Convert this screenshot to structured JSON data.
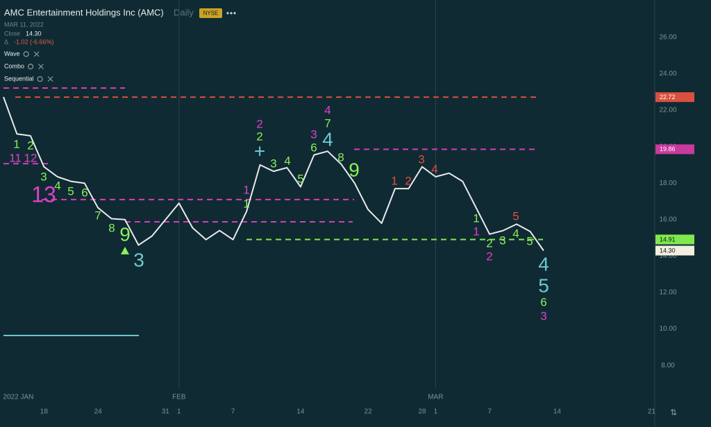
{
  "chart_data": {
    "type": "line",
    "title": "AMC Entertainment Holdings Inc (AMC)",
    "interval": "Daily",
    "exchange": "NYSE",
    "date": "MAR 11, 2022",
    "close_label": "Close",
    "close": {
      "value": 14.3,
      "label": "14.30"
    },
    "change_label": "Δ",
    "change": "-1.02 (-6.66%)",
    "indicators": [
      "Wave",
      "Combo",
      "Sequential"
    ],
    "x": [
      0,
      1,
      2,
      3,
      4,
      5,
      6,
      7,
      8,
      9,
      10,
      11,
      12,
      13,
      14,
      15,
      16,
      17,
      18,
      19,
      20,
      21,
      22,
      23,
      24,
      25,
      26,
      27,
      28,
      29,
      30,
      31,
      32,
      33,
      34,
      35,
      36,
      37,
      38,
      39,
      40
    ],
    "series": [
      {
        "name": "AMC",
        "color": "#e8ecec",
        "values": [
          22.73,
          20.7,
          20.6,
          18.9,
          18.35,
          18.1,
          18.0,
          16.65,
          16.05,
          16.0,
          14.6,
          15.1,
          16.0,
          16.9,
          15.55,
          14.9,
          15.4,
          14.9,
          16.45,
          19.0,
          18.65,
          18.85,
          17.8,
          19.55,
          19.75,
          19.05,
          18.0,
          16.55,
          15.8,
          17.7,
          17.7,
          18.9,
          18.35,
          18.55,
          18.1,
          16.65,
          15.2,
          15.4,
          15.75,
          15.35,
          14.3
        ]
      }
    ],
    "xlim": [
      -0.257,
      48.23
    ],
    "ylim": [
      6.75,
      28.05
    ],
    "yticks": [
      {
        "value": 26,
        "label": "26.00"
      },
      {
        "value": 24,
        "label": "24.00"
      },
      {
        "value": 22,
        "label": "22.00"
      },
      {
        "value": 20,
        "label": "20.00"
      },
      {
        "value": 18,
        "label": "18.00"
      },
      {
        "value": 16,
        "label": "16.00"
      },
      {
        "value": 14,
        "label": "14.00"
      },
      {
        "value": 12,
        "label": "12.00"
      },
      {
        "value": 10,
        "label": "10.00"
      },
      {
        "value": 8,
        "label": "8.00"
      }
    ],
    "xticks": [
      {
        "value": 3,
        "label": "18"
      },
      {
        "value": 7,
        "label": "24"
      },
      {
        "value": 12,
        "label": "31"
      },
      {
        "value": 13,
        "label": "1"
      },
      {
        "value": 17,
        "label": "7"
      },
      {
        "value": 22,
        "label": "14"
      },
      {
        "value": 27,
        "label": "22"
      },
      {
        "value": 31,
        "label": "28"
      },
      {
        "value": 32,
        "label": "1"
      },
      {
        "value": 36,
        "label": "7"
      },
      {
        "value": 41,
        "label": "14"
      },
      {
        "value": 48,
        "label": "21"
      }
    ],
    "month_labels": [
      {
        "value": 1.1,
        "label": "2022 JAN"
      },
      {
        "value": 13,
        "label": "FEB"
      },
      {
        "value": 32,
        "label": "MAR"
      }
    ],
    "levels": [
      {
        "value": 23.22,
        "color": "#d63fb8",
        "dashed": true
      },
      {
        "value": 22.72,
        "color": "#d9503f",
        "dashed": true
      },
      {
        "value": 19.07,
        "color": "#d63fb8",
        "dashed": true
      },
      {
        "value": 17.1,
        "color": "#d63fb8",
        "dashed": true
      },
      {
        "value": 15.88,
        "color": "#d63fb8",
        "dashed": true
      },
      {
        "value": 19.86,
        "color": "#d63fb8",
        "dashed": true
      },
      {
        "value": 14.91,
        "color": "#7fe84e",
        "dashed": true
      },
      {
        "value": 9.64,
        "color": "#6cc8cc",
        "dashed": false
      }
    ],
    "price_tags": [
      {
        "value": 22.72,
        "label": "22.72",
        "color": "#d9503f"
      },
      {
        "value": 19.86,
        "label": "19.86",
        "color": "#c83a9c"
      },
      {
        "value": 14.91,
        "label": "14.91",
        "color": "#7fe84e"
      },
      {
        "value": 14.3,
        "label": "14.30",
        "color": "#f2efe0"
      }
    ],
    "annotations": [
      {
        "text": "1",
        "color": "#8cf05a"
      },
      {
        "text": "2",
        "color": "#8cf05a"
      },
      {
        "text": "11",
        "color": "#e040c8"
      },
      {
        "text": "12",
        "color": "#e040c8"
      },
      {
        "text": "3",
        "color": "#8cf05a"
      },
      {
        "text": "4",
        "color": "#8cf05a"
      },
      {
        "text": "5",
        "color": "#8cf05a"
      },
      {
        "text": "6",
        "color": "#8cf05a"
      },
      {
        "text": "13",
        "color": "#e040c8"
      },
      {
        "text": "7",
        "color": "#8cf05a"
      },
      {
        "text": "8",
        "color": "#8cf05a"
      },
      {
        "text": "9",
        "color": "#8cf05a"
      },
      {
        "text": "3",
        "color": "#6cc8d0"
      },
      {
        "text": "1",
        "color": "#e040c8"
      },
      {
        "text": "1",
        "color": "#8cf05a"
      },
      {
        "text": "2",
        "color": "#e040c8"
      },
      {
        "text": "2",
        "color": "#8cf05a"
      },
      {
        "text": "+",
        "color": "#6cc8d0"
      },
      {
        "text": "3",
        "color": "#8cf05a"
      },
      {
        "text": "4",
        "color": "#8cf05a"
      },
      {
        "text": "5",
        "color": "#8cf05a"
      },
      {
        "text": "3",
        "color": "#e040c8"
      },
      {
        "text": "6",
        "color": "#8cf05a"
      },
      {
        "text": "4",
        "color": "#e040c8"
      },
      {
        "text": "7",
        "color": "#8cf05a"
      },
      {
        "text": "4",
        "color": "#6cc8d0"
      },
      {
        "text": "8",
        "color": "#8cf05a"
      },
      {
        "text": "9",
        "color": "#8cf05a"
      },
      {
        "text": "1",
        "color": "#e0503c"
      },
      {
        "text": "2",
        "color": "#e0503c"
      },
      {
        "text": "3",
        "color": "#e0503c"
      },
      {
        "text": "4",
        "color": "#e0503c"
      },
      {
        "text": "1",
        "color": "#8cf05a"
      },
      {
        "text": "1",
        "color": "#e040c8"
      },
      {
        "text": "2",
        "color": "#8cf05a"
      },
      {
        "text": "2",
        "color": "#e040c8"
      },
      {
        "text": "3",
        "color": "#8cf05a"
      },
      {
        "text": "4",
        "color": "#8cf05a"
      },
      {
        "text": "5",
        "color": "#e0503c"
      },
      {
        "text": "5",
        "color": "#8cf05a"
      },
      {
        "text": "4",
        "color": "#6cc8d0"
      },
      {
        "text": "5",
        "color": "#6cc8d0"
      },
      {
        "text": "6",
        "color": "#8cf05a"
      },
      {
        "text": "3",
        "color": "#e040c8"
      }
    ]
  }
}
